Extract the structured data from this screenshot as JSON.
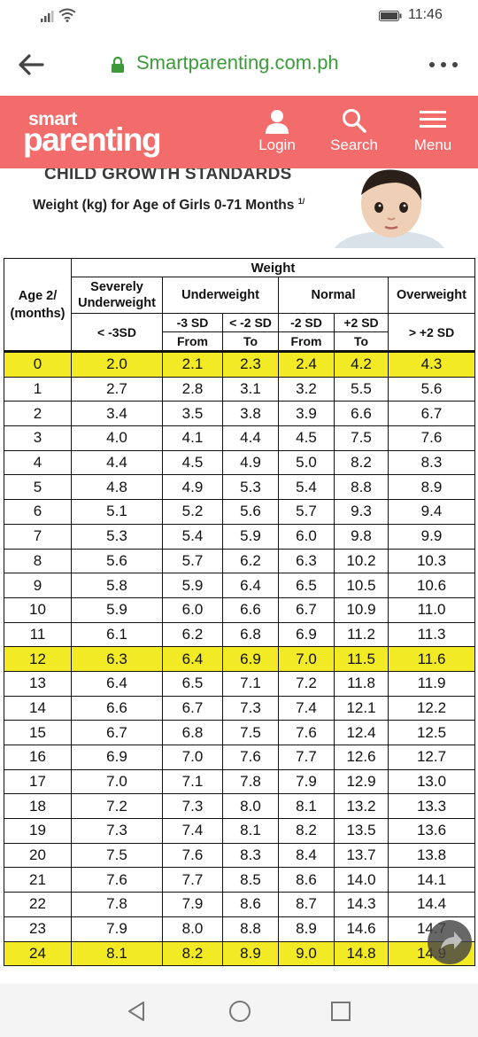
{
  "status": {
    "time": "11:46"
  },
  "browser": {
    "url": "Smartparenting.com.ph"
  },
  "site": {
    "logo_top": "smart",
    "logo_bottom": "parenting",
    "login_label": "Login",
    "search_label": "Search",
    "menu_label": "Menu",
    "brand_color": "#f36c6c"
  },
  "article": {
    "heading": "CHILD GROWTH STANDARDS",
    "subheading": "Weight (kg) for Age of Girls 0-71 Months",
    "subheading_note": "1/"
  },
  "table": {
    "age_header": "Age 2/\n(months)",
    "weight_header": "Weight",
    "severely_underweight": "Severely Underweight",
    "underweight": "Underweight",
    "normal": "Normal",
    "overweight": "Overweight",
    "lt3sd": "< -3SD",
    "m3sd": "-3 SD",
    "ltm2sd": "< -2 SD",
    "m2sd": "-2 SD",
    "p2sd": "+2 SD",
    "gtp2sd": "> +2 SD",
    "from1": "From",
    "to1": "To",
    "from2": "From",
    "to2": "To",
    "highlight_color": "#f1ea25",
    "rows": [
      [
        "0",
        "2.0",
        "2.1",
        "2.3",
        "2.4",
        "4.2",
        "4.3"
      ],
      [
        "1",
        "2.7",
        "2.8",
        "3.1",
        "3.2",
        "5.5",
        "5.6"
      ],
      [
        "2",
        "3.4",
        "3.5",
        "3.8",
        "3.9",
        "6.6",
        "6.7"
      ],
      [
        "3",
        "4.0",
        "4.1",
        "4.4",
        "4.5",
        "7.5",
        "7.6"
      ],
      [
        "4",
        "4.4",
        "4.5",
        "4.9",
        "5.0",
        "8.2",
        "8.3"
      ],
      [
        "5",
        "4.8",
        "4.9",
        "5.3",
        "5.4",
        "8.8",
        "8.9"
      ],
      [
        "6",
        "5.1",
        "5.2",
        "5.6",
        "5.7",
        "9.3",
        "9.4"
      ],
      [
        "7",
        "5.3",
        "5.4",
        "5.9",
        "6.0",
        "9.8",
        "9.9"
      ],
      [
        "8",
        "5.6",
        "5.7",
        "6.2",
        "6.3",
        "10.2",
        "10.3"
      ],
      [
        "9",
        "5.8",
        "5.9",
        "6.4",
        "6.5",
        "10.5",
        "10.6"
      ],
      [
        "10",
        "5.9",
        "6.0",
        "6.6",
        "6.7",
        "10.9",
        "11.0"
      ],
      [
        "11",
        "6.1",
        "6.2",
        "6.8",
        "6.9",
        "11.2",
        "11.3"
      ],
      [
        "12",
        "6.3",
        "6.4",
        "6.9",
        "7.0",
        "11.5",
        "11.6"
      ],
      [
        "13",
        "6.4",
        "6.5",
        "7.1",
        "7.2",
        "11.8",
        "11.9"
      ],
      [
        "14",
        "6.6",
        "6.7",
        "7.3",
        "7.4",
        "12.1",
        "12.2"
      ],
      [
        "15",
        "6.7",
        "6.8",
        "7.5",
        "7.6",
        "12.4",
        "12.5"
      ],
      [
        "16",
        "6.9",
        "7.0",
        "7.6",
        "7.7",
        "12.6",
        "12.7"
      ],
      [
        "17",
        "7.0",
        "7.1",
        "7.8",
        "7.9",
        "12.9",
        "13.0"
      ],
      [
        "18",
        "7.2",
        "7.3",
        "8.0",
        "8.1",
        "13.2",
        "13.3"
      ],
      [
        "19",
        "7.3",
        "7.4",
        "8.1",
        "8.2",
        "13.5",
        "13.6"
      ],
      [
        "20",
        "7.5",
        "7.6",
        "8.3",
        "8.4",
        "13.7",
        "13.8"
      ],
      [
        "21",
        "7.6",
        "7.7",
        "8.5",
        "8.6",
        "14.0",
        "14.1"
      ],
      [
        "22",
        "7.8",
        "7.9",
        "8.6",
        "8.7",
        "14.3",
        "14.4"
      ],
      [
        "23",
        "7.9",
        "8.0",
        "8.8",
        "8.9",
        "14.6",
        "14.7"
      ],
      [
        "24",
        "8.1",
        "8.2",
        "8.9",
        "9.0",
        "14.8",
        "14.9"
      ]
    ],
    "highlighted_ages": [
      "0",
      "12",
      "24"
    ]
  }
}
